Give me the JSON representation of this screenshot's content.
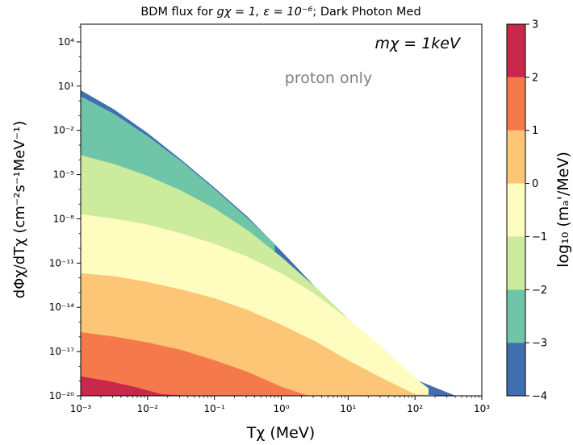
{
  "chart_data": {
    "type": "filled-contour",
    "title_prefix": "BDM flux for ",
    "title_math": "gχ = 1, ε = 10⁻⁶",
    "title_suffix": "; Dark Photon Med",
    "xlabel": "Tχ  (MeV)",
    "ylabel": "dΦχ/dTχ (cm⁻²s⁻¹MeV⁻¹)",
    "x_scale": "log",
    "y_scale": "log",
    "x_range_exp": [
      -3,
      3
    ],
    "y_range_exp": [
      -20,
      5.2
    ],
    "x_ticks": [
      {
        "exp": -3,
        "label": "10⁻³"
      },
      {
        "exp": -2,
        "label": "10⁻²"
      },
      {
        "exp": -1,
        "label": "10⁻¹"
      },
      {
        "exp": 0,
        "label": "10⁰"
      },
      {
        "exp": 1,
        "label": "10¹"
      },
      {
        "exp": 2,
        "label": "10²"
      },
      {
        "exp": 3,
        "label": "10³"
      }
    ],
    "y_ticks": [
      {
        "exp": 4,
        "label": "10⁴"
      },
      {
        "exp": 1,
        "label": "10¹"
      },
      {
        "exp": -2,
        "label": "10⁻²"
      },
      {
        "exp": -5,
        "label": "10⁻⁵"
      },
      {
        "exp": -8,
        "label": "10⁻⁸"
      },
      {
        "exp": -11,
        "label": "10⁻¹¹"
      },
      {
        "exp": -14,
        "label": "10⁻¹⁴"
      },
      {
        "exp": -17,
        "label": "10⁻¹⁷"
      },
      {
        "exp": -20,
        "label": "10⁻²⁰"
      }
    ],
    "annotations": {
      "mass_label": "mχ = 1keV",
      "note": "proton only"
    },
    "colorbar": {
      "label": "log₁₀ (mₐ'/MeV)",
      "levels": [
        -4,
        -3,
        -2,
        -1,
        0,
        1,
        2,
        3
      ],
      "tick_labels": [
        "−4",
        "−3",
        "−2",
        "−1",
        "0",
        "1",
        "2",
        "3"
      ],
      "colors": [
        "#3f6fb0",
        "#6ec5a7",
        "#cdeb9d",
        "#fefcbe",
        "#fdc676",
        "#f47a4b",
        "#c8294b"
      ]
    },
    "boundaries": [
      {
        "name": "upper-envelope",
        "x_exp": [
          -3,
          -2.5,
          -2,
          -1.5,
          -1,
          -0.5,
          0,
          0.5,
          1,
          1.5,
          2,
          2.6
        ],
        "y_exp": [
          0.7,
          -0.6,
          -2.2,
          -4,
          -5.9,
          -7.9,
          -10.2,
          -12.6,
          -14.8,
          -16.9,
          -18.9,
          -20
        ]
      },
      {
        "name": "level-(-3)",
        "x_exp": [
          -3,
          -2.5,
          -2,
          -1.5,
          -1,
          -0.5,
          -0.1
        ],
        "y_exp": [
          0.3,
          -0.9,
          -2.4,
          -4.1,
          -6,
          -8,
          -9.7
        ]
      },
      {
        "name": "level-(-2)",
        "x_exp": [
          -3,
          -2.5,
          -2,
          -1.5,
          -1,
          -0.5,
          0,
          0.5,
          1,
          1.1
        ],
        "y_exp": [
          -3.7,
          -4.3,
          -5.1,
          -6.1,
          -7.3,
          -8.8,
          -10.6,
          -12.6,
          -14.8,
          -15.3
        ]
      },
      {
        "name": "level-(-1)",
        "x_exp": [
          -3,
          -2.5,
          -2,
          -1.5,
          -1,
          -0.5,
          0,
          0.5,
          1,
          1.5,
          2,
          2.2
        ],
        "y_exp": [
          -7.7,
          -8,
          -8.4,
          -9,
          -9.7,
          -10.6,
          -11.7,
          -13.1,
          -14.8,
          -16.7,
          -18.8,
          -19.5
        ]
      },
      {
        "name": "level-0",
        "x_exp": [
          -3,
          -2.5,
          -2,
          -1.5,
          -1,
          -0.5,
          0,
          0.5,
          1,
          1.5,
          2,
          2.4
        ],
        "y_exp": [
          -11.7,
          -11.9,
          -12.3,
          -12.8,
          -13.4,
          -14.2,
          -15.2,
          -16.3,
          -17.6,
          -18.8,
          -19.9,
          -20
        ]
      },
      {
        "name": "level-1",
        "x_exp": [
          -3,
          -2.5,
          -2,
          -1.5,
          -1,
          -0.5,
          0,
          0.4
        ],
        "y_exp": [
          -15.7,
          -16,
          -16.4,
          -16.9,
          -17.6,
          -18.4,
          -19.4,
          -20
        ]
      },
      {
        "name": "level-2",
        "x_exp": [
          -3,
          -2.6,
          -2.2,
          -1.8,
          -1.4
        ],
        "y_exp": [
          -18.7,
          -19,
          -19.4,
          -19.9,
          -20
        ]
      }
    ]
  }
}
